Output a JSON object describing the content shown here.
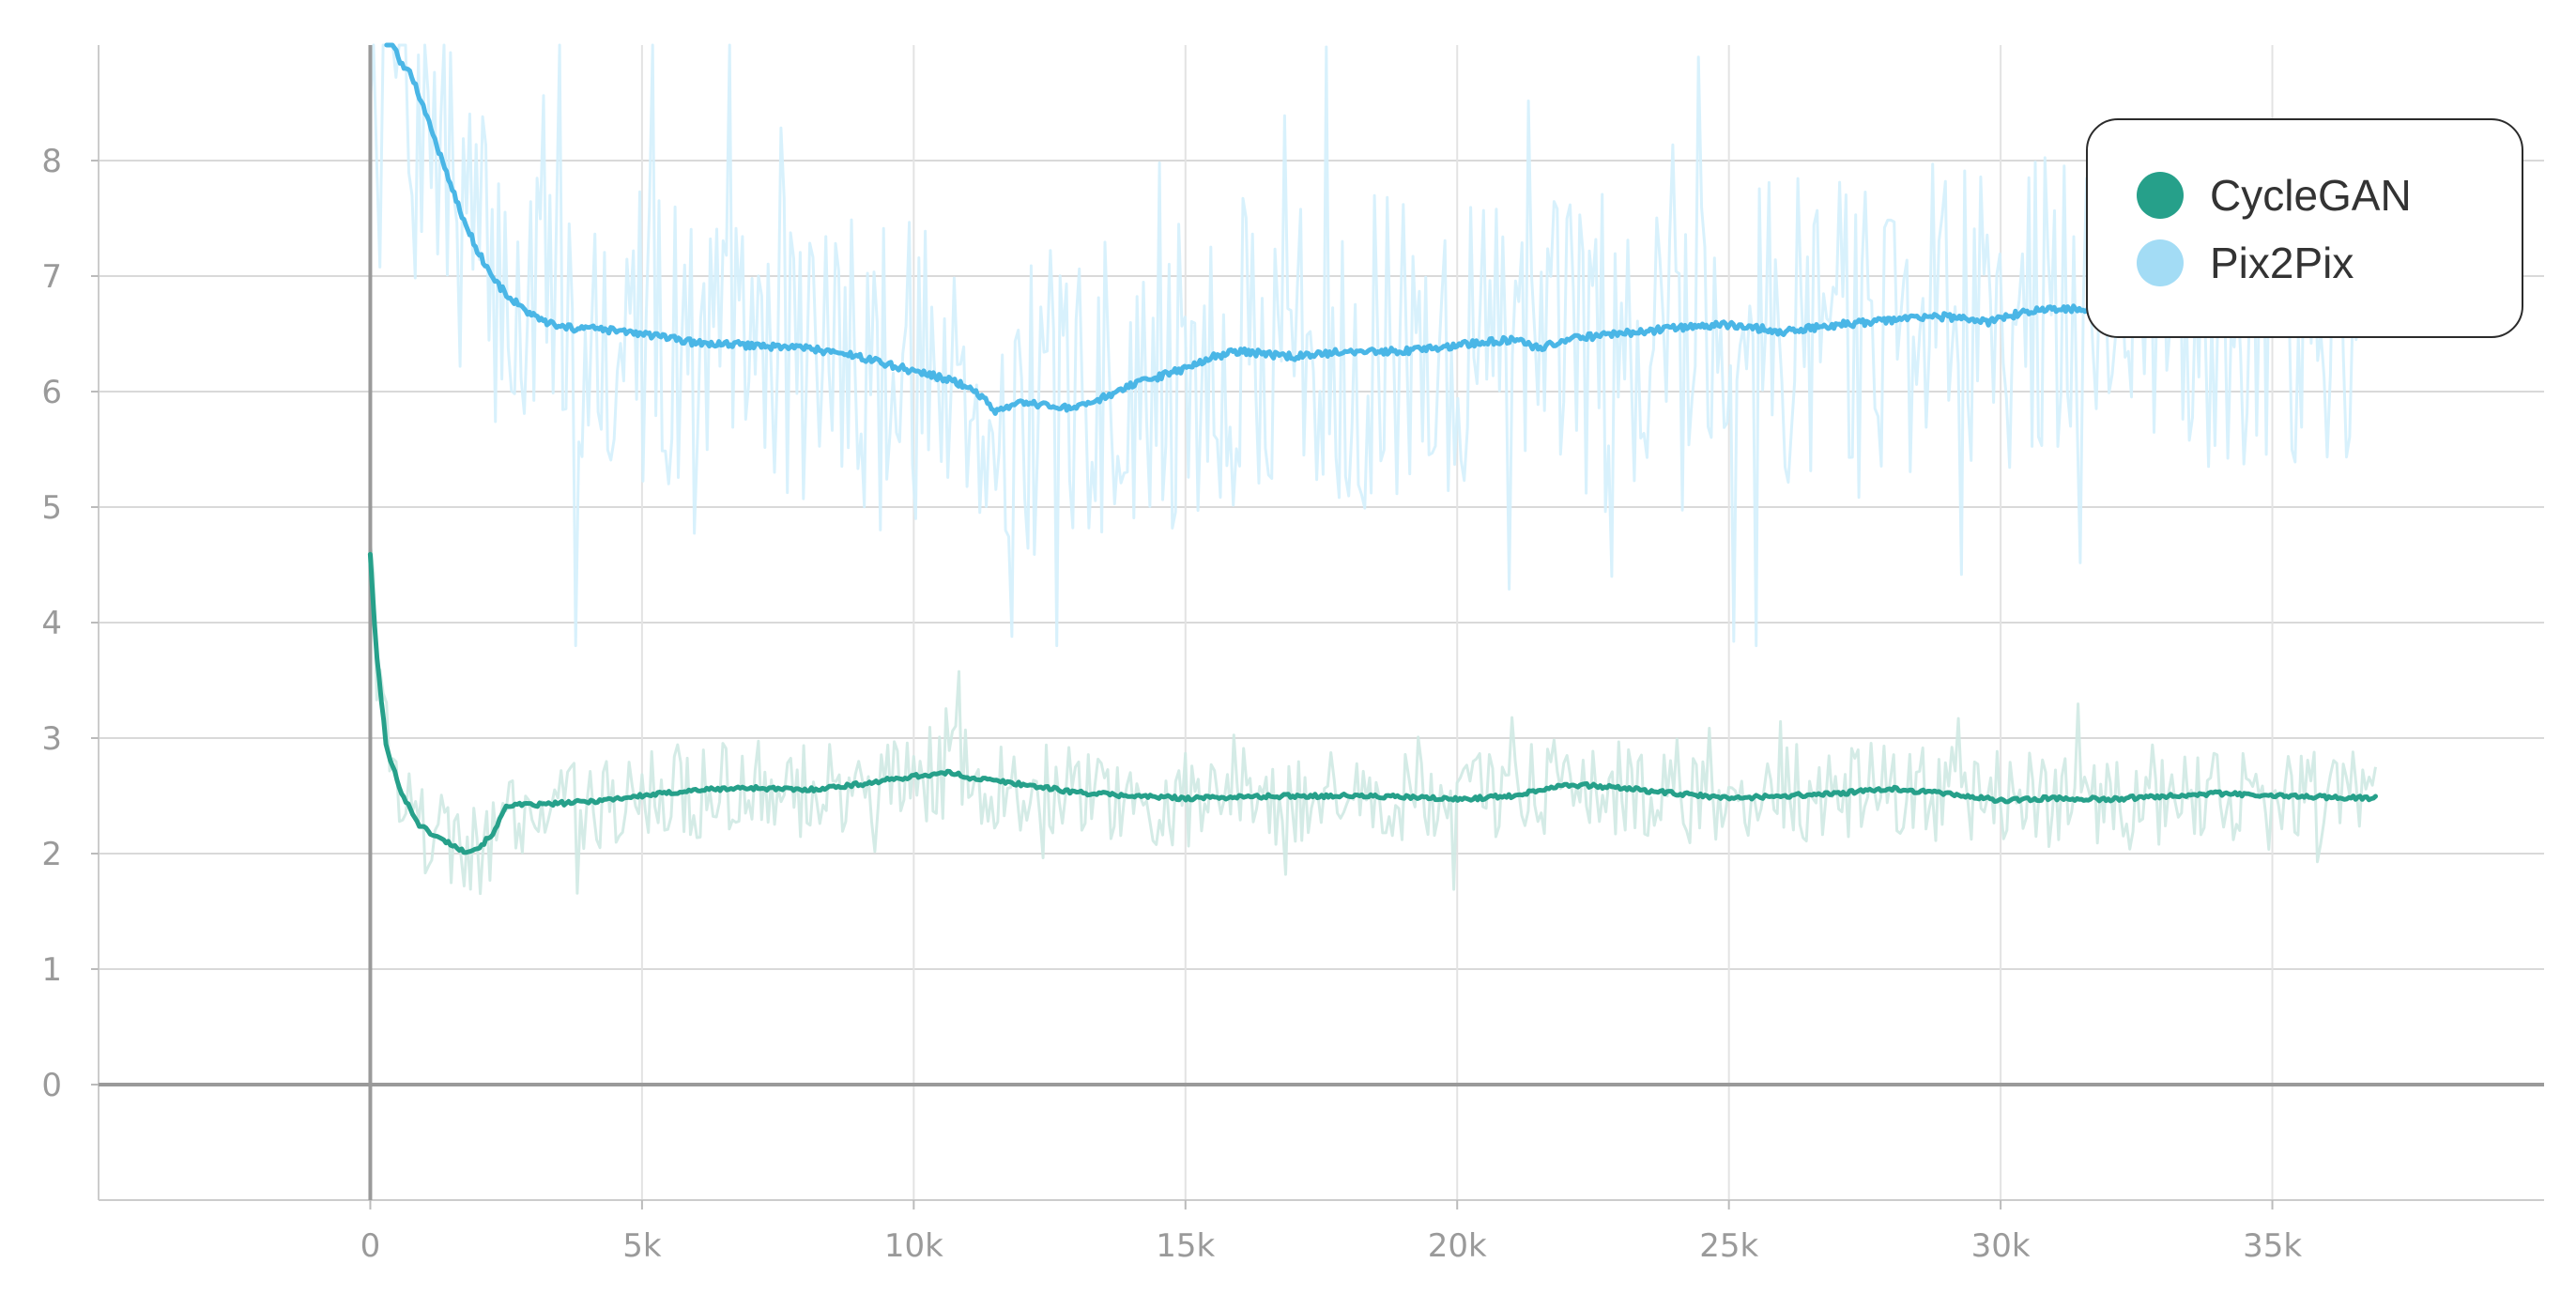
{
  "chart_data": {
    "type": "line",
    "title": "",
    "xlabel": "",
    "ylabel": "",
    "xlim": [
      -5000,
      40000
    ],
    "ylim": [
      -1,
      9
    ],
    "x_ticks": [
      0,
      5000,
      10000,
      15000,
      20000,
      25000,
      30000,
      35000
    ],
    "x_tick_labels": [
      "0",
      "5k",
      "10k",
      "15k",
      "20k",
      "25k",
      "30k",
      "35k"
    ],
    "y_ticks": [
      0,
      1,
      2,
      3,
      4,
      5,
      6,
      7,
      8
    ],
    "y_tick_labels": [
      "0",
      "1",
      "2",
      "3",
      "4",
      "5",
      "6",
      "7",
      "8"
    ],
    "grid": true,
    "legend_position": "top-right",
    "series": [
      {
        "name": "CycleGAN",
        "color": "#26a08a",
        "raw_color": "#cfe9e3",
        "raw_band": [
          1.3,
          4.2
        ],
        "x": [
          0,
          100,
          300,
          600,
          900,
          1200,
          1500,
          1700,
          2000,
          2300,
          2500,
          3000,
          4000,
          5000,
          6000,
          7000,
          8000,
          9000,
          10000,
          10700,
          11000,
          12000,
          13000,
          14000,
          15000,
          16000,
          17000,
          18000,
          19000,
          20000,
          21000,
          22000,
          23000,
          24000,
          25000,
          26000,
          27000,
          28000,
          29000,
          30000,
          31000,
          32000,
          33000,
          34000,
          35000,
          36000,
          36900
        ],
        "values": [
          4.6,
          3.8,
          2.9,
          2.5,
          2.25,
          2.15,
          2.08,
          2.02,
          2.05,
          2.2,
          2.42,
          2.42,
          2.45,
          2.5,
          2.55,
          2.57,
          2.55,
          2.6,
          2.67,
          2.7,
          2.66,
          2.6,
          2.53,
          2.5,
          2.48,
          2.49,
          2.5,
          2.5,
          2.49,
          2.47,
          2.5,
          2.6,
          2.57,
          2.52,
          2.48,
          2.5,
          2.52,
          2.56,
          2.52,
          2.46,
          2.48,
          2.47,
          2.5,
          2.52,
          2.5,
          2.49,
          2.48
        ]
      },
      {
        "name": "Pix2Pix",
        "color": "#4ab6e6",
        "raw_color": "#d4effc",
        "raw_band": [
          3.8,
          9.0
        ],
        "x": [
          300,
          500,
          800,
          1100,
          1400,
          1700,
          2000,
          2300,
          2600,
          3000,
          3500,
          4000,
          5000,
          6000,
          7000,
          8000,
          9000,
          10000,
          10800,
          11200,
          11500,
          12000,
          13000,
          13500,
          14000,
          15000,
          15500,
          16000,
          17000,
          18000,
          19000,
          20000,
          21000,
          21500,
          22000,
          23000,
          24000,
          25000,
          26000,
          27000,
          28000,
          29000,
          29800,
          30500,
          31500,
          32300
        ],
        "values": [
          9.2,
          8.9,
          8.7,
          8.3,
          7.9,
          7.5,
          7.2,
          6.95,
          6.8,
          6.65,
          6.55,
          6.55,
          6.5,
          6.42,
          6.4,
          6.38,
          6.3,
          6.18,
          6.08,
          5.98,
          5.82,
          5.9,
          5.85,
          5.95,
          6.05,
          6.2,
          6.3,
          6.35,
          6.3,
          6.35,
          6.35,
          6.4,
          6.45,
          6.38,
          6.45,
          6.5,
          6.55,
          6.58,
          6.52,
          6.58,
          6.62,
          6.65,
          6.6,
          6.7,
          6.72,
          6.65
        ]
      }
    ]
  }
}
